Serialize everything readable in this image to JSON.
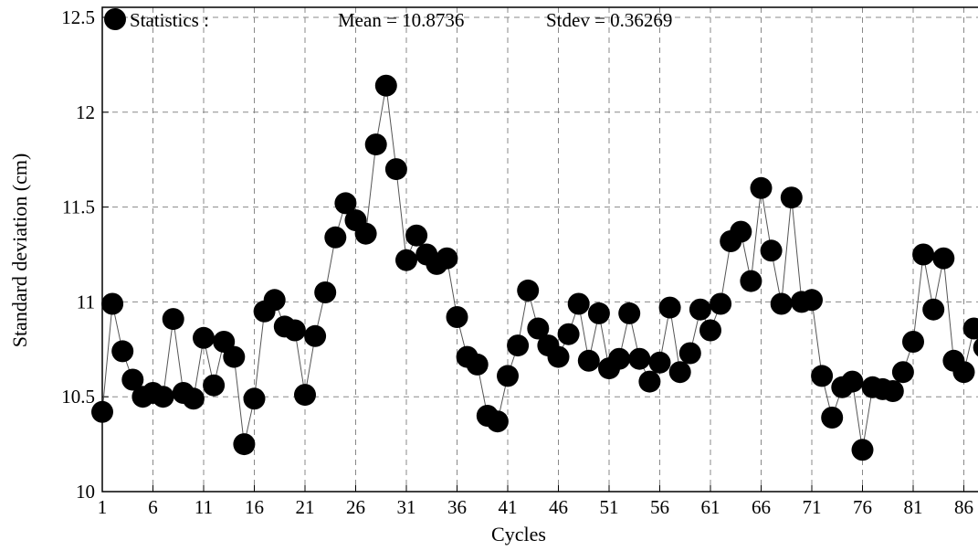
{
  "chart_data": {
    "type": "line",
    "xlabel": "Cycles",
    "ylabel": "Standard deviation (cm)",
    "xlim": [
      1,
      88
    ],
    "ylim": [
      10,
      12.5
    ],
    "x_ticks": [
      1,
      6,
      11,
      16,
      21,
      26,
      31,
      36,
      41,
      46,
      51,
      56,
      61,
      66,
      71,
      76,
      81,
      86
    ],
    "y_ticks": [
      10,
      10.5,
      11,
      11.5,
      12,
      12.5
    ],
    "y_tick_labels": [
      "10",
      "10.5",
      "11",
      "11.5",
      "12",
      "12.5"
    ],
    "grid": true,
    "marker": "circle",
    "marker_color": "#000000",
    "line_color": "#555555",
    "legend": {
      "label": "Statistics :",
      "mean_text": "Mean = 10.8736",
      "stdev_text": "Stdev = 0.36269"
    },
    "x": [
      1,
      2,
      3,
      4,
      5,
      6,
      7,
      8,
      9,
      10,
      11,
      12,
      13,
      14,
      15,
      16,
      17,
      18,
      19,
      20,
      21,
      22,
      23,
      24,
      25,
      26,
      27,
      28,
      29,
      30,
      31,
      32,
      33,
      34,
      35,
      36,
      37,
      38,
      39,
      40,
      41,
      42,
      43,
      44,
      45,
      46,
      47,
      48,
      49,
      50,
      51,
      52,
      53,
      54,
      55,
      56,
      57,
      58,
      59,
      60,
      61,
      62,
      63,
      64,
      65,
      66,
      67,
      68,
      69,
      70,
      71,
      72,
      73,
      74,
      75,
      76,
      77,
      78,
      79,
      80,
      81,
      82,
      83,
      84,
      85,
      86,
      87,
      88
    ],
    "values": [
      10.42,
      10.99,
      10.74,
      10.59,
      10.5,
      10.52,
      10.5,
      10.91,
      10.52,
      10.49,
      10.81,
      10.56,
      10.79,
      10.71,
      10.25,
      10.49,
      10.95,
      11.01,
      10.87,
      10.85,
      10.51,
      10.82,
      11.05,
      11.34,
      11.52,
      11.43,
      11.36,
      11.83,
      12.14,
      11.7,
      11.22,
      11.35,
      11.25,
      11.2,
      11.23,
      10.92,
      10.71,
      10.67,
      10.4,
      10.37,
      10.61,
      10.77,
      11.06,
      10.86,
      10.77,
      10.71,
      10.83,
      10.99,
      10.69,
      10.94,
      10.65,
      10.7,
      10.94,
      10.7,
      10.58,
      10.68,
      10.97,
      10.63,
      10.73,
      10.96,
      10.85,
      10.99,
      11.32,
      11.37,
      11.11,
      11.6,
      11.27,
      10.99,
      11.55,
      11.0,
      11.01,
      10.61,
      10.39,
      10.55,
      10.58,
      10.22,
      10.55,
      10.54,
      10.53,
      10.63,
      10.79,
      11.25,
      10.96,
      11.23,
      10.69,
      10.63,
      10.86,
      10.76
    ]
  }
}
